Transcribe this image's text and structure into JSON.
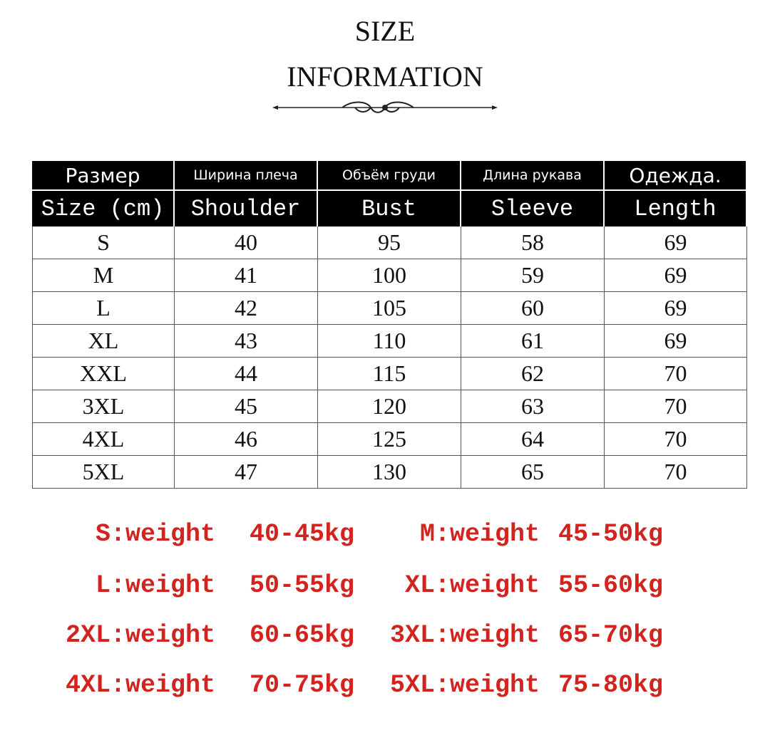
{
  "header": {
    "title_lines": [
      "SIZE",
      "INFORMATION"
    ]
  },
  "table": {
    "header_ru": [
      "Размер",
      "Ширина плеча",
      "Объём груди",
      "Длина рукава",
      "Одежда."
    ],
    "header_en": [
      "Size (cm)",
      "Shoulder",
      "Bust",
      "Sleeve",
      "Length"
    ],
    "rows": [
      [
        "S",
        "40",
        "95",
        "58",
        "69"
      ],
      [
        "M",
        "41",
        "100",
        "59",
        "69"
      ],
      [
        "L",
        "42",
        "105",
        "60",
        "69"
      ],
      [
        "XL",
        "43",
        "110",
        "61",
        "69"
      ],
      [
        "XXL",
        "44",
        "115",
        "62",
        "70"
      ],
      [
        "3XL",
        "45",
        "120",
        "63",
        "70"
      ],
      [
        "4XL",
        "46",
        "125",
        "64",
        "70"
      ],
      [
        "5XL",
        "47",
        "130",
        "65",
        "70"
      ]
    ]
  },
  "weights": [
    {
      "size": "S:weight",
      "range": "40-45kg"
    },
    {
      "size": "M:weight",
      "range": "45-50kg"
    },
    {
      "size": "L:weight",
      "range": "50-55kg"
    },
    {
      "size": "XL:weight",
      "range": "55-60kg"
    },
    {
      "size": "2XL:weight",
      "range": "60-65kg"
    },
    {
      "size": "3XL:weight",
      "range": "65-70kg"
    },
    {
      "size": "4XL:weight",
      "range": "70-75kg"
    },
    {
      "size": "5XL:weight",
      "range": "75-80kg"
    }
  ]
}
